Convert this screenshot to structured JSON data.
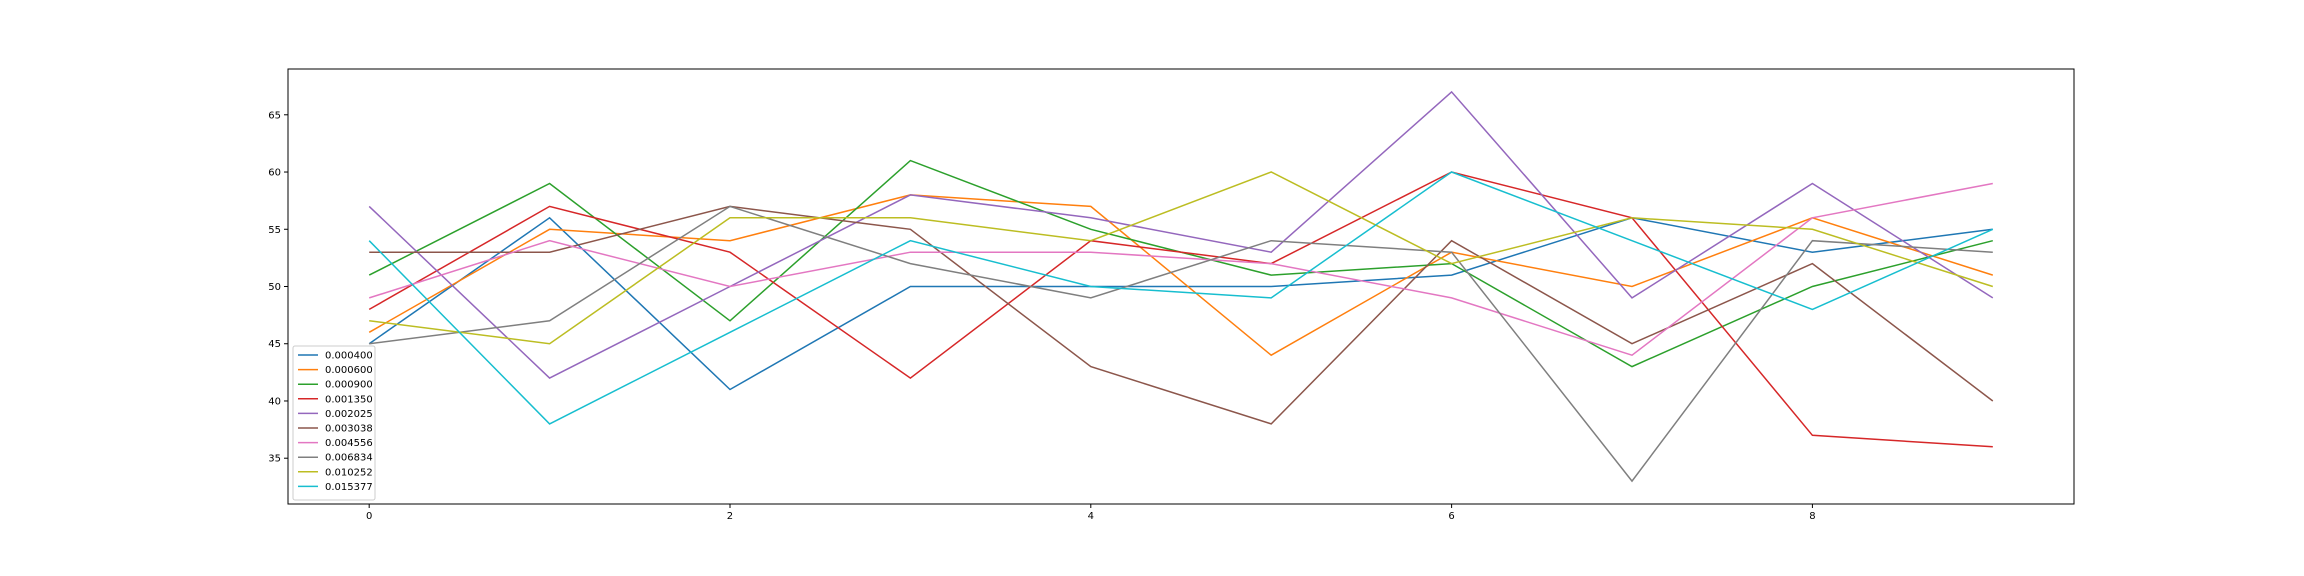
{
  "chart_data": {
    "type": "line",
    "title": "",
    "xlabel": "",
    "ylabel": "",
    "x": [
      0,
      1,
      2,
      3,
      4,
      5,
      6,
      7,
      8,
      9
    ],
    "xlim": [
      -0.45,
      9.45
    ],
    "ylim": [
      31,
      69
    ],
    "xticks": [
      0,
      2,
      4,
      6,
      8
    ],
    "yticks": [
      35,
      40,
      45,
      50,
      55,
      60,
      65
    ],
    "grid": false,
    "legend_position": "lower-left",
    "series": [
      {
        "name": "0.000400",
        "color": "#1f77b4",
        "values": [
          45,
          56,
          41,
          50,
          50,
          50,
          51,
          56,
          53,
          55
        ]
      },
      {
        "name": "0.000600",
        "color": "#ff7f0e",
        "values": [
          46,
          55,
          54,
          58,
          57,
          44,
          53,
          50,
          56,
          51
        ]
      },
      {
        "name": "0.000900",
        "color": "#2ca02c",
        "values": [
          51,
          59,
          47,
          61,
          55,
          51,
          52,
          43,
          50,
          54
        ]
      },
      {
        "name": "0.001350",
        "color": "#d62728",
        "values": [
          48,
          57,
          53,
          42,
          54,
          52,
          60,
          56,
          37,
          36
        ]
      },
      {
        "name": "0.002025",
        "color": "#9467bd",
        "values": [
          57,
          42,
          50,
          58,
          56,
          53,
          67,
          49,
          59,
          49
        ]
      },
      {
        "name": "0.003038",
        "color": "#8c564b",
        "values": [
          53,
          53,
          57,
          55,
          43,
          38,
          54,
          45,
          52,
          40
        ]
      },
      {
        "name": "0.004556",
        "color": "#e377c2",
        "values": [
          49,
          54,
          50,
          53,
          53,
          52,
          49,
          44,
          56,
          59
        ]
      },
      {
        "name": "0.006834",
        "color": "#7f7f7f",
        "values": [
          45,
          47,
          57,
          52,
          49,
          54,
          53,
          33,
          54,
          53
        ]
      },
      {
        "name": "0.010252",
        "color": "#bcbd22",
        "values": [
          47,
          45,
          56,
          56,
          54,
          60,
          52,
          56,
          55,
          50
        ]
      },
      {
        "name": "0.015377",
        "color": "#17becf",
        "values": [
          54,
          38,
          46,
          54,
          50,
          49,
          60,
          54,
          48,
          55
        ]
      }
    ]
  }
}
